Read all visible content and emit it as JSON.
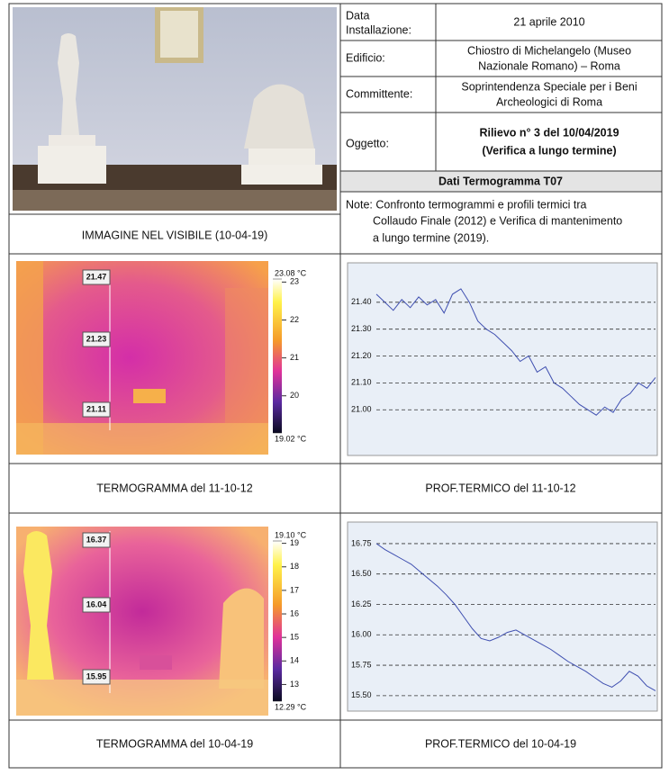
{
  "photo_caption": "IMMAGINE NEL VISIBILE (10-04-19)",
  "info": {
    "rows": [
      {
        "label": [
          "Data",
          "Installazione:"
        ],
        "value": [
          "21 aprile 2010"
        ]
      },
      {
        "label": [
          "Edificio:"
        ],
        "value": [
          "Chiostro di Michelangelo (Museo",
          "Nazionale Romano) – Roma"
        ]
      },
      {
        "label": [
          "Committente:"
        ],
        "value": [
          "Soprintendenza Speciale per i Beni",
          "Archeologici di Roma"
        ]
      },
      {
        "label": [
          "Oggetto:"
        ],
        "value": [
          "Rilievo n° 3 del 10/04/2019",
          "(Verifica a lungo termine)"
        ]
      }
    ],
    "section": "Dati Termogramma T07",
    "note": [
      "Note: Confronto termogrammi e profili termici tra",
      "Collaudo Finale (2012) e Verifica di mantenimento",
      "a lungo termine (2019)."
    ]
  },
  "thermograms": [
    {
      "point_labels": [
        "21.47",
        "21.23",
        "21.11"
      ],
      "colorbar_ticks": [
        {
          "value": 23.08,
          "label": "23.08 °C"
        },
        23,
        22,
        21,
        20,
        {
          "value": 19.02,
          "label": "19.02 °C"
        }
      ],
      "caption": "TERMOGRAMMA del 11-10-12"
    },
    {
      "point_labels": [
        "16.37",
        "16.04",
        "15.95"
      ],
      "colorbar_ticks": [
        {
          "value": 19.1,
          "label": "19.10 °C"
        },
        19,
        18,
        17,
        16,
        15,
        14,
        13,
        {
          "value": 12.29,
          "label": "12.29 °C"
        }
      ],
      "caption": "TERMOGRAMMA del 10-04-19"
    }
  ],
  "chart_data": [
    {
      "type": "line",
      "color": "#3f4fb0",
      "grid": true,
      "ylim": [
        20.85,
        21.52
      ],
      "yticks": [
        {
          "value": 21.4,
          "label": "21.40"
        },
        {
          "value": 21.3,
          "label": "21.30"
        },
        {
          "value": 21.2,
          "label": "21.20"
        },
        {
          "value": 21.1,
          "label": "21.10"
        },
        {
          "value": 21.0,
          "label": "21.00"
        }
      ],
      "values": [
        21.43,
        21.4,
        21.37,
        21.41,
        21.38,
        21.42,
        21.39,
        21.41,
        21.36,
        21.43,
        21.45,
        21.4,
        21.33,
        21.3,
        21.28,
        21.25,
        21.22,
        21.18,
        21.2,
        21.14,
        21.16,
        21.1,
        21.08,
        21.05,
        21.02,
        21.0,
        20.98,
        21.01,
        20.99,
        21.04,
        21.06,
        21.1,
        21.08,
        21.12
      ],
      "caption": "PROF.TERMICO del 11-10-12"
    },
    {
      "type": "line",
      "color": "#3f4fb0",
      "grid": true,
      "ylim": [
        15.41,
        16.89
      ],
      "yticks": [
        16.75,
        {
          "value": 16.5,
          "label": "16.50"
        },
        16.25,
        {
          "value": 16.0,
          "label": "16.00"
        },
        15.75,
        {
          "value": 15.5,
          "label": "15.50"
        }
      ],
      "values": [
        16.75,
        16.7,
        16.66,
        16.62,
        16.58,
        16.52,
        16.46,
        16.4,
        16.33,
        16.25,
        16.15,
        16.05,
        15.97,
        15.95,
        15.98,
        16.02,
        16.04,
        16.0,
        15.96,
        15.92,
        15.88,
        15.83,
        15.78,
        15.74,
        15.7,
        15.65,
        15.6,
        15.57,
        15.62,
        15.7,
        15.66,
        15.58,
        15.54
      ],
      "caption": "PROF.TERMICO del 10-04-19"
    }
  ]
}
